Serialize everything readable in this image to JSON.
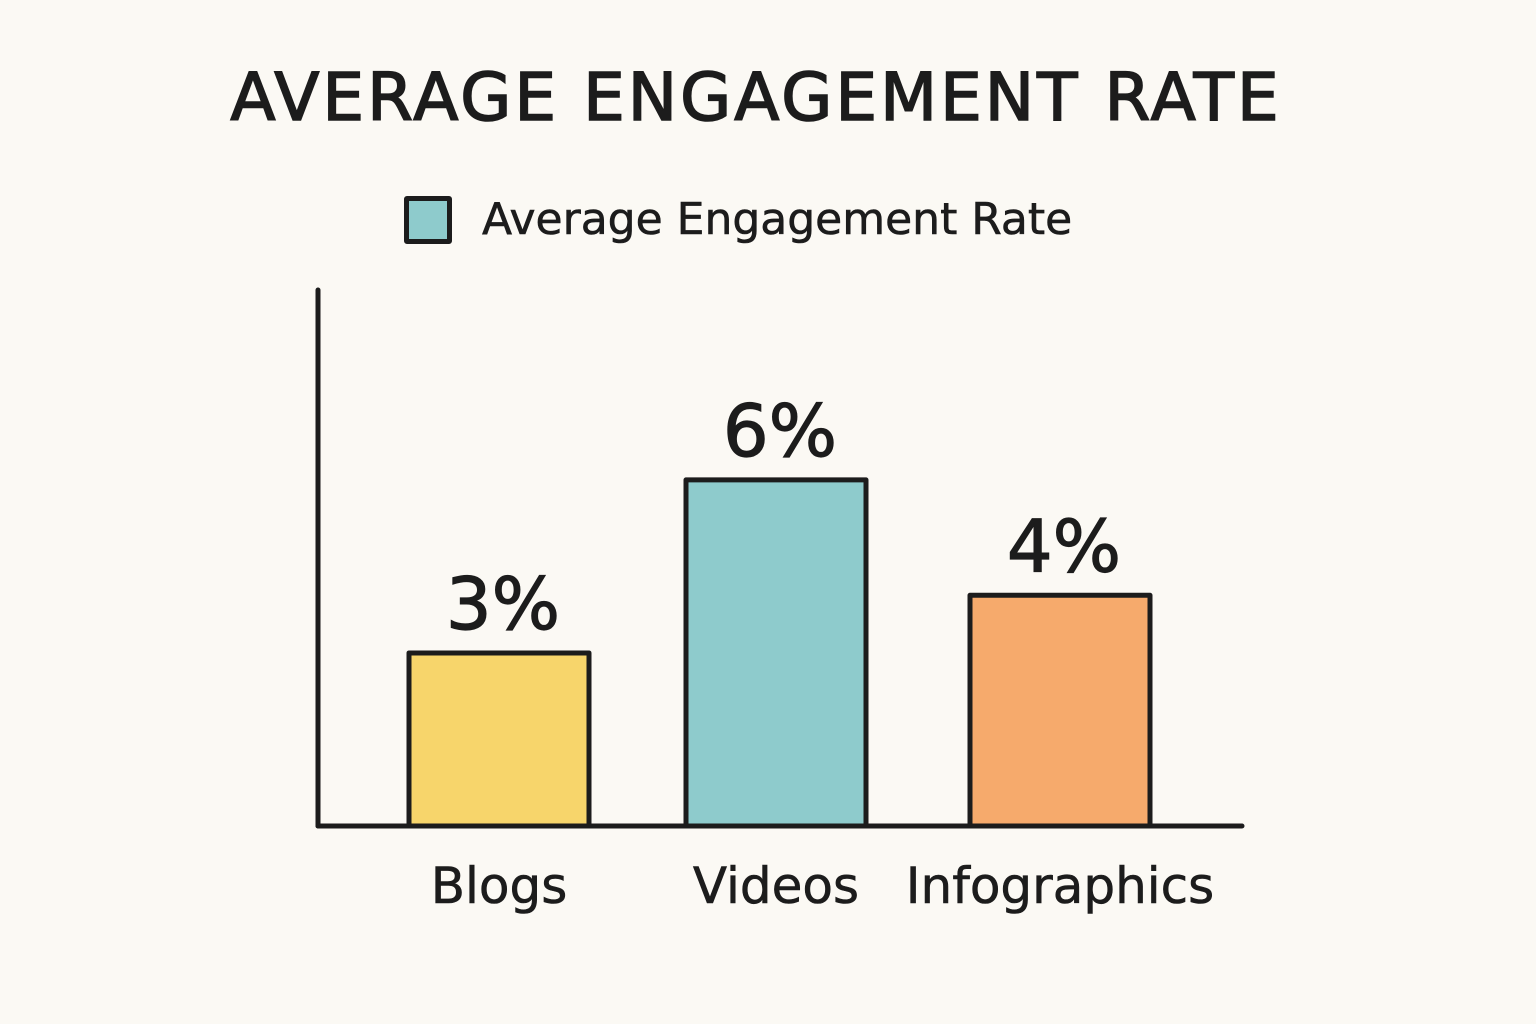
{
  "chart_data": {
    "type": "bar",
    "title": "AVERAGE ENGAGEMENT RATE",
    "categories": [
      "Blogs",
      "Videos",
      "Infographics"
    ],
    "series": [
      {
        "name": "Average Engagement Rate",
        "values": [
          3,
          6,
          4
        ],
        "labels": [
          "3%",
          "6%",
          "4%"
        ],
        "colors": [
          "#f7d56b",
          "#8ecbcc",
          "#f6aa6c"
        ]
      }
    ],
    "legend_color": "#8ecbcc",
    "xlabel": "",
    "ylabel": "",
    "ylim": [
      0,
      9.5
    ],
    "grid": false,
    "legend_position": "top"
  }
}
